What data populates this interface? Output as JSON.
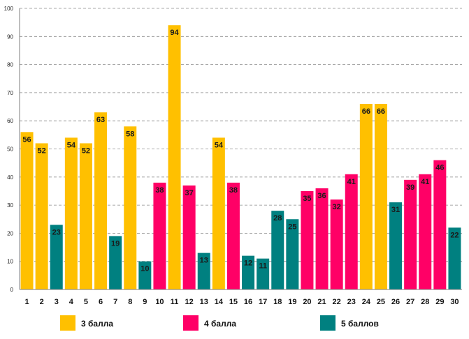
{
  "chart_data": {
    "type": "bar",
    "title": "",
    "xlabel": "",
    "ylabel": "",
    "ylim": [
      0,
      100
    ],
    "yticks": [
      0,
      10,
      20,
      30,
      40,
      50,
      60,
      70,
      80,
      90,
      100
    ],
    "grid": true,
    "legend_position": "bottom",
    "categories": [
      "1",
      "2",
      "3",
      "4",
      "5",
      "6",
      "7",
      "8",
      "9",
      "10",
      "11",
      "12",
      "13",
      "14",
      "15",
      "16",
      "17",
      "18",
      "19",
      "20",
      "21",
      "22",
      "23",
      "24",
      "25",
      "26",
      "27",
      "28",
      "29",
      "30"
    ],
    "values": [
      56,
      52,
      23,
      54,
      52,
      63,
      19,
      58,
      10,
      38,
      94,
      37,
      13,
      54,
      38,
      12,
      11,
      28,
      25,
      35,
      36,
      32,
      41,
      66,
      66,
      31,
      39,
      41,
      46,
      22
    ],
    "groups": [
      "g3",
      "g3",
      "g5",
      "g3",
      "g3",
      "g3",
      "g5",
      "g3",
      "g5",
      "g4",
      "g3",
      "g4",
      "g5",
      "g3",
      "g4",
      "g5",
      "g5",
      "g5",
      "g5",
      "g4",
      "g4",
      "g4",
      "g4",
      "g3",
      "g3",
      "g5",
      "g4",
      "g4",
      "g4",
      "g5"
    ],
    "series": [
      {
        "key": "g3",
        "name": "3 балла",
        "color": "#FFC000"
      },
      {
        "key": "g4",
        "name": "4 балла",
        "color": "#FF0066"
      },
      {
        "key": "g5",
        "name": "5 баллов",
        "color": "#008080"
      }
    ]
  }
}
